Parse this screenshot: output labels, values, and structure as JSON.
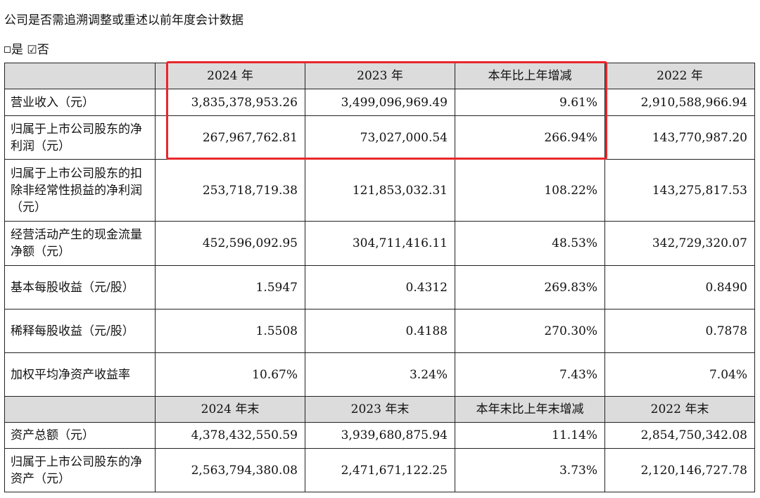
{
  "heading": "公司是否需追溯调整或重述以前年度会计数据",
  "option_yes": "是",
  "option_no": "否",
  "header1": [
    "2024 年",
    "2023 年",
    "本年比上年增减",
    "2022 年"
  ],
  "rows1": [
    {
      "label": "营业收入（元）",
      "values": [
        "3,835,378,953.26",
        "3,499,096,969.49",
        "9.61%",
        "2,910,588,966.94"
      ]
    },
    {
      "label": "归属于上市公司股东的净利润（元）",
      "values": [
        "267,967,762.81",
        "73,027,000.54",
        "266.94%",
        "143,770,987.20"
      ]
    },
    {
      "label": "归属于上市公司股东的扣除非经常性损益的净利润（元）",
      "values": [
        "253,718,719.38",
        "121,853,032.31",
        "108.22%",
        "143,275,817.53"
      ]
    },
    {
      "label": "经营活动产生的现金流量净额（元）",
      "values": [
        "452,596,092.95",
        "304,711,416.11",
        "48.53%",
        "342,729,320.07"
      ]
    },
    {
      "label": "基本每股收益（元/股）",
      "values": [
        "1.5947",
        "0.4312",
        "269.83%",
        "0.8490"
      ]
    },
    {
      "label": "稀释每股收益（元/股）",
      "values": [
        "1.5508",
        "0.4188",
        "270.30%",
        "0.7878"
      ]
    },
    {
      "label": "加权平均净资产收益率",
      "values": [
        "10.67%",
        "3.24%",
        "7.43%",
        "7.04%"
      ]
    }
  ],
  "header2": [
    "2024 年末",
    "2023 年末",
    "本年末比上年末增减",
    "2022 年末"
  ],
  "rows2": [
    {
      "label": "资产总额（元）",
      "values": [
        "4,378,432,550.59",
        "3,939,680,875.94",
        "11.14%",
        "2,854,750,342.08"
      ]
    },
    {
      "label": "归属于上市公司股东的净资产（元）",
      "values": [
        "2,563,794,380.08",
        "2,471,671,122.25",
        "3.73%",
        "2,120,146,727.78"
      ]
    }
  ]
}
